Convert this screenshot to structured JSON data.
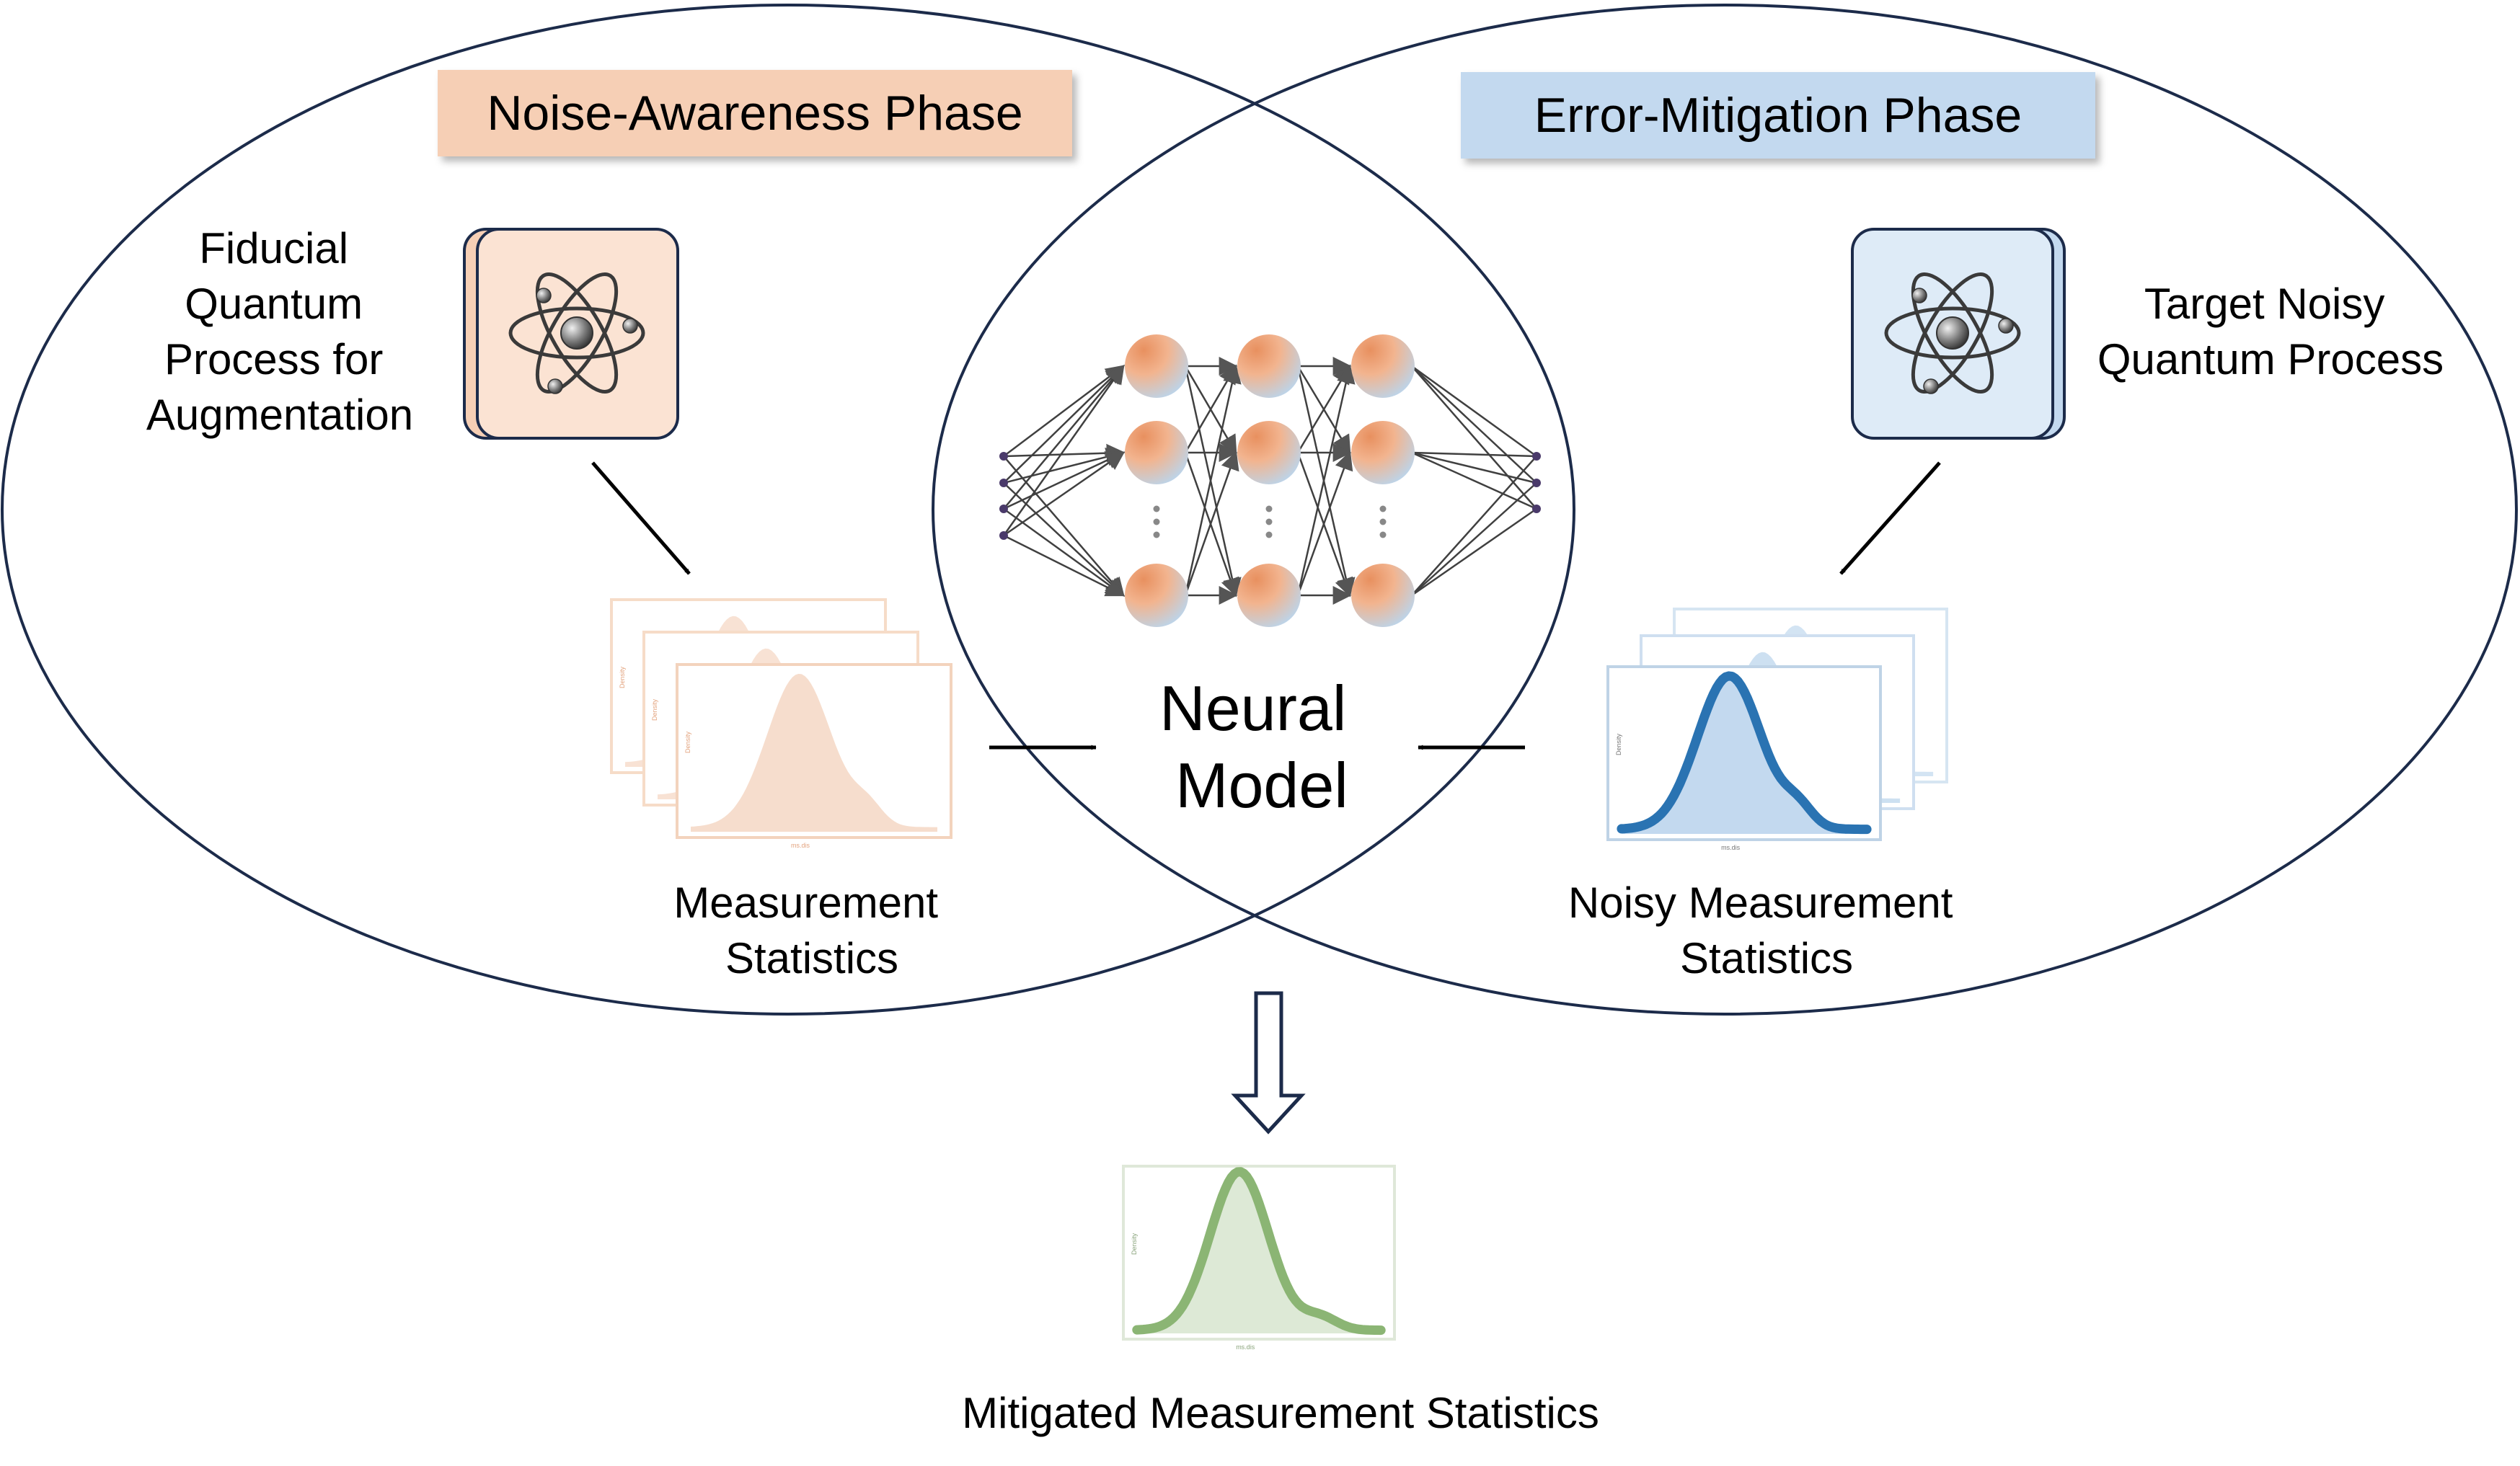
{
  "colors": {
    "outline": "#1c2b4a",
    "orange_fill": "#f6cfb5",
    "orange_light": "#fbe6da",
    "blue_fill": "#c3d9ef",
    "blue_light": "#deebf7",
    "blue_curve": "#2a73b2",
    "green_curve": "#8bb574",
    "green_fill": "#dde9d6",
    "neuron_orange": "#e8905f",
    "neuron_blue": "#b9d6ef",
    "edge": "#404040"
  },
  "phases": {
    "left_title": "Noise-Awareness Phase",
    "right_title": "Error-Mitigation Phase"
  },
  "left": {
    "process_label": [
      "Fiducial",
      "Quantum",
      "Process for",
      "Augmentation"
    ],
    "process_icon": "atom-icon",
    "stats_label": [
      "Measurement",
      "Statistics"
    ]
  },
  "right": {
    "process_label": [
      "Target Noisy",
      "Quantum Process"
    ],
    "process_icon": "atom-icon",
    "stats_label": [
      "Noisy Measurement",
      "Statistics"
    ]
  },
  "center": {
    "model_label": [
      "Neural",
      "Model"
    ],
    "network_icon": "neural-network-icon"
  },
  "output": {
    "label": "Mitigated Measurement Statistics"
  },
  "plot_text": {
    "y_axis": "Density",
    "x_axis": "ms.dis"
  }
}
